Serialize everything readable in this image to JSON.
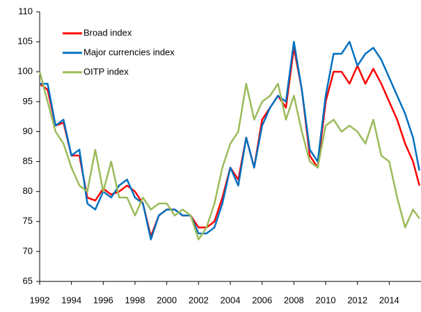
{
  "chart_data": {
    "type": "line",
    "x": [
      1992,
      1992.5,
      1993,
      1993.5,
      1994,
      1994.5,
      1995,
      1995.5,
      1996,
      1996.5,
      1997,
      1997.5,
      1998,
      1998.5,
      1999,
      1999.5,
      2000,
      2000.5,
      2001,
      2001.5,
      2002,
      2002.5,
      2003,
      2003.5,
      2004,
      2004.5,
      2005,
      2005.5,
      2006,
      2006.5,
      2007,
      2007.5,
      2008,
      2008.5,
      2009,
      2009.5,
      2010,
      2010.5,
      2011,
      2011.5,
      2012,
      2012.5,
      2013,
      2013.5,
      2014,
      2014.5,
      2015,
      2015.5,
      2015.9
    ],
    "series": [
      {
        "name": "Broad index",
        "color": "#ff0000",
        "values": [
          98,
          97,
          91,
          91.5,
          86,
          86,
          79,
          78.5,
          80.5,
          79.5,
          80,
          81,
          80,
          78,
          72.5,
          76,
          77,
          77,
          76,
          76,
          74,
          74,
          75,
          79,
          84,
          82,
          89,
          84,
          92,
          94,
          96,
          94,
          104,
          97,
          86,
          84,
          95,
          100,
          100,
          98,
          101,
          98,
          100.5,
          98,
          95,
          92,
          88,
          85,
          81
        ]
      },
      {
        "name": "Major currencies index",
        "color": "#0070c0",
        "values": [
          98,
          98,
          91,
          92,
          86,
          87,
          78,
          77,
          80,
          79,
          81,
          82,
          79,
          78,
          72,
          76,
          77,
          77,
          76,
          76,
          73,
          73,
          74,
          78,
          84,
          81,
          89,
          84,
          91,
          94,
          96,
          95,
          105,
          97,
          87,
          85,
          96,
          103,
          103,
          105,
          101,
          103,
          104,
          102,
          99,
          96,
          93,
          89,
          83.5
        ]
      },
      {
        "name": "OITP index",
        "color": "#9bbb59",
        "values": [
          100,
          95,
          90,
          88,
          84,
          81,
          80,
          87,
          80,
          85,
          79,
          79,
          76,
          79,
          77,
          78,
          78,
          76,
          77,
          76,
          72,
          74,
          78,
          84,
          88,
          90,
          98,
          92,
          95,
          96,
          98,
          92,
          96,
          90,
          85,
          84,
          91,
          92,
          90,
          91,
          90,
          88,
          92,
          86,
          85,
          79,
          74,
          77,
          75.5
        ]
      }
    ],
    "xlim": [
      1992,
      2016
    ],
    "xticks": [
      1992,
      1994,
      1996,
      1998,
      2000,
      2002,
      2004,
      2006,
      2008,
      2010,
      2012,
      2014
    ],
    "ylim": [
      65,
      110
    ],
    "yticks": [
      65,
      70,
      75,
      80,
      85,
      90,
      95,
      100,
      105,
      110
    ],
    "legend": "top-left"
  }
}
